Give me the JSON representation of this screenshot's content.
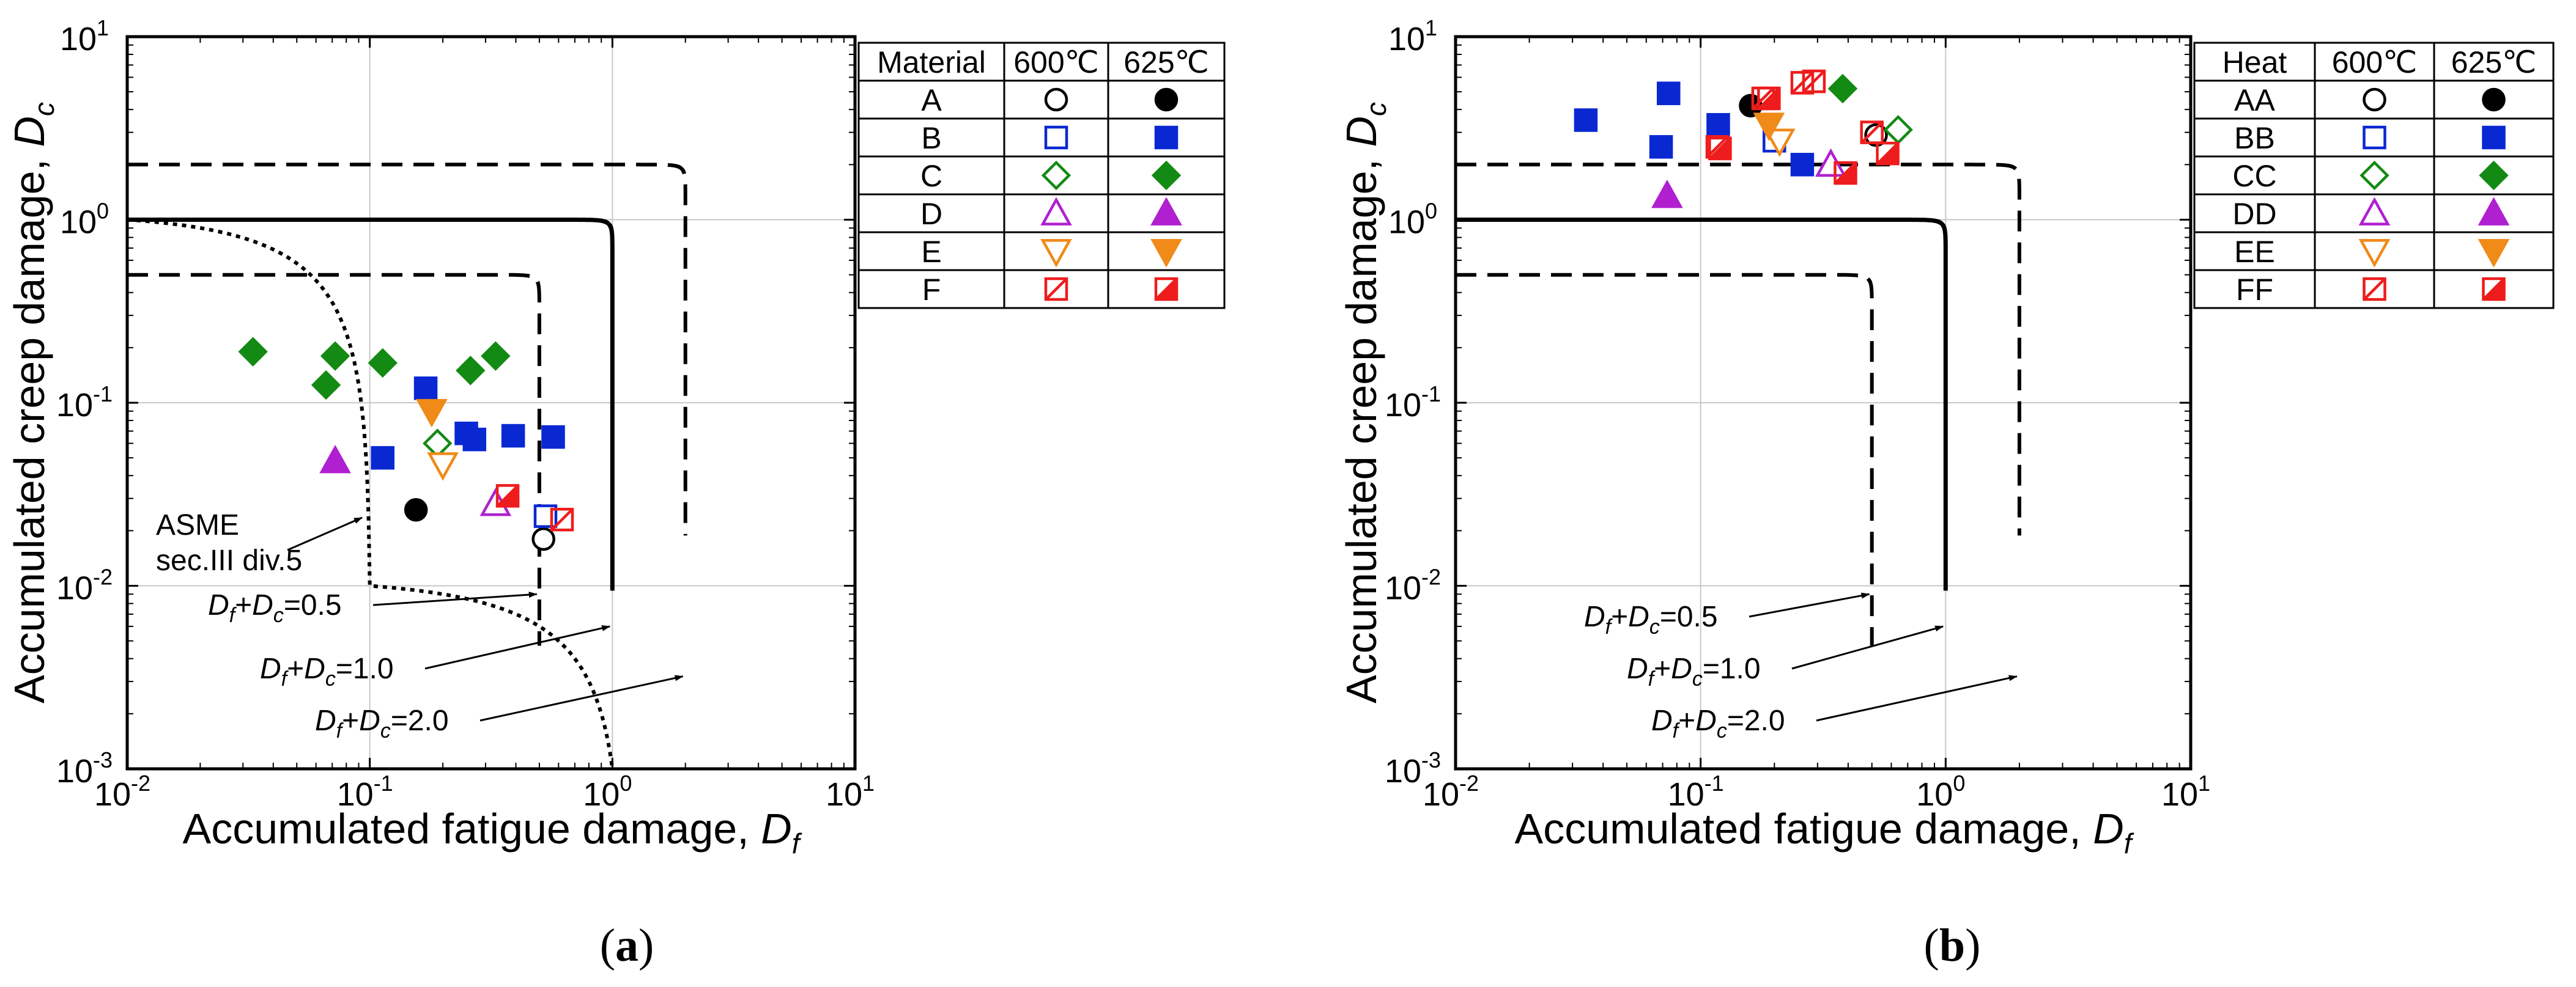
{
  "chart_data": [
    {
      "type": "scatter",
      "panel_label": "(a)",
      "xlabel": "Accumulated fatigue damage, D_f",
      "xlabel_text": "Accumulated fatigue damage, ",
      "ylabel": "Accumulated creep damage, D_c",
      "ylabel_text": "Accumulated creep damage, ",
      "xscale": "log",
      "yscale": "log",
      "xlim": [
        0.01,
        10
      ],
      "ylim": [
        0.001,
        10
      ],
      "xticks": [
        {
          "base": "10",
          "exp": "-2"
        },
        {
          "base": "10",
          "exp": "-1"
        },
        {
          "base": "10",
          "exp": "0"
        },
        {
          "base": "10",
          "exp": "1"
        }
      ],
      "yticks": [
        {
          "base": "10",
          "exp": "-3"
        },
        {
          "base": "10",
          "exp": "-2"
        },
        {
          "base": "10",
          "exp": "-1"
        },
        {
          "base": "10",
          "exp": "0"
        },
        {
          "base": "10",
          "exp": "1"
        }
      ],
      "grid": true,
      "envelopes": [
        {
          "name": "Df+Dc=0.5",
          "style": "dashed",
          "sum": 0.5
        },
        {
          "name": "Df+Dc=1.0",
          "style": "solid",
          "sum": 1.0
        },
        {
          "name": "Df+Dc=2.0",
          "style": "dashed",
          "sum": 2.0
        },
        {
          "name": "ASME sec.III div.5",
          "style": "dotted",
          "bilinear": [
            [
              0.01,
              1
            ],
            [
              0.1,
              0.01
            ],
            [
              1,
              0.001
            ]
          ]
        }
      ],
      "annotations": [
        {
          "text_lines": [
            "ASME",
            "sec.III div.5"
          ],
          "points_to": "ASME sec.III div.5"
        },
        {
          "text": "Df+Dc=0.5",
          "points_to": "Df+Dc=0.5"
        },
        {
          "text": "Df+Dc=1.0",
          "points_to": "Df+Dc=1.0"
        },
        {
          "text": "Df+Dc=2.0",
          "points_to": "Df+Dc=2.0"
        }
      ],
      "legend": {
        "placement": "right-outside",
        "headers": [
          "Material",
          "600℃",
          "625℃"
        ],
        "rows": [
          {
            "name": "A",
            "marker": "circle",
            "color": "#000000"
          },
          {
            "name": "B",
            "marker": "square",
            "color": "#0a28d2"
          },
          {
            "name": "C",
            "marker": "diamond",
            "color": "#138a13"
          },
          {
            "name": "D",
            "marker": "triangle-up",
            "color": "#b020d0"
          },
          {
            "name": "E",
            "marker": "triangle-down",
            "color": "#f08a18"
          },
          {
            "name": "F",
            "marker": "half-square",
            "color": "#ee1c1c"
          }
        ]
      },
      "series": [
        {
          "name": "A",
          "temperature": "600℃",
          "marker": "circle",
          "filled": false,
          "color": "#000000",
          "points": [
            [
              0.52,
              0.018
            ]
          ]
        },
        {
          "name": "A",
          "temperature": "625℃",
          "marker": "circle",
          "filled": true,
          "color": "#000000",
          "points": [
            [
              0.155,
              0.026
            ]
          ]
        },
        {
          "name": "B",
          "temperature": "600℃",
          "marker": "square",
          "filled": false,
          "color": "#0a28d2",
          "points": [
            [
              0.53,
              0.024
            ]
          ]
        },
        {
          "name": "B",
          "temperature": "625℃",
          "marker": "square",
          "filled": true,
          "color": "#0a28d2",
          "points": [
            [
              0.113,
              0.05
            ],
            [
              0.17,
              0.12
            ],
            [
              0.25,
              0.068
            ],
            [
              0.27,
              0.063
            ],
            [
              0.39,
              0.066
            ],
            [
              0.57,
              0.065
            ]
          ]
        },
        {
          "name": "C",
          "temperature": "600℃",
          "marker": "diamond",
          "filled": false,
          "color": "#138a13",
          "points": [
            [
              0.19,
              0.06
            ]
          ]
        },
        {
          "name": "C",
          "temperature": "625℃",
          "marker": "diamond",
          "filled": true,
          "color": "#138a13",
          "points": [
            [
              0.033,
              0.19
            ],
            [
              0.066,
              0.125
            ],
            [
              0.072,
              0.18
            ],
            [
              0.113,
              0.165
            ],
            [
              0.26,
              0.15
            ],
            [
              0.33,
              0.18
            ]
          ]
        },
        {
          "name": "D",
          "temperature": "600℃",
          "marker": "triangle-up",
          "filled": false,
          "color": "#b020d0",
          "points": [
            [
              0.33,
              0.028
            ]
          ]
        },
        {
          "name": "D",
          "temperature": "625℃",
          "marker": "triangle-up",
          "filled": true,
          "color": "#b020d0",
          "points": [
            [
              0.072,
              0.048
            ]
          ]
        },
        {
          "name": "E",
          "temperature": "600℃",
          "marker": "triangle-down",
          "filled": false,
          "color": "#f08a18",
          "points": [
            [
              0.2,
              0.046
            ]
          ]
        },
        {
          "name": "E",
          "temperature": "625℃",
          "marker": "triangle-down",
          "filled": true,
          "color": "#f08a18",
          "points": [
            [
              0.18,
              0.09
            ]
          ]
        },
        {
          "name": "F",
          "temperature": "600℃",
          "marker": "half-square",
          "filled": false,
          "color": "#ee1c1c",
          "points": [
            [
              0.62,
              0.023
            ]
          ]
        },
        {
          "name": "F",
          "temperature": "625℃",
          "marker": "half-square",
          "filled": true,
          "color": "#ee1c1c",
          "points": [
            [
              0.37,
              0.031
            ]
          ]
        }
      ]
    },
    {
      "type": "scatter",
      "panel_label": "(b)",
      "xlabel": "Accumulated fatigue damage, D_f",
      "xlabel_text": "Accumulated fatigue damage, ",
      "ylabel": "Accumulated creep damage, D_c",
      "ylabel_text": "Accumulated creep damage, ",
      "xscale": "log",
      "yscale": "log",
      "xlim": [
        0.01,
        10
      ],
      "ylim": [
        0.001,
        10
      ],
      "xticks": [
        {
          "base": "10",
          "exp": "-2"
        },
        {
          "base": "10",
          "exp": "-1"
        },
        {
          "base": "10",
          "exp": "0"
        },
        {
          "base": "10",
          "exp": "1"
        }
      ],
      "yticks": [
        {
          "base": "10",
          "exp": "-3"
        },
        {
          "base": "10",
          "exp": "-2"
        },
        {
          "base": "10",
          "exp": "-1"
        },
        {
          "base": "10",
          "exp": "0"
        },
        {
          "base": "10",
          "exp": "1"
        }
      ],
      "grid": true,
      "envelopes": [
        {
          "name": "Df+Dc=0.5",
          "style": "dashed",
          "sum": 0.5
        },
        {
          "name": "Df+Dc=1.0",
          "style": "solid",
          "sum": 1.0
        },
        {
          "name": "Df+Dc=2.0",
          "style": "dashed",
          "sum": 2.0
        }
      ],
      "annotations": [
        {
          "text": "Df+Dc=0.5",
          "points_to": "Df+Dc=0.5"
        },
        {
          "text": "Df+Dc=1.0",
          "points_to": "Df+Dc=1.0"
        },
        {
          "text": "Df+Dc=2.0",
          "points_to": "Df+Dc=2.0"
        }
      ],
      "legend": {
        "placement": "right-outside",
        "headers": [
          "Heat",
          "600℃",
          "625℃"
        ],
        "rows": [
          {
            "name": "AA",
            "marker": "circle",
            "color": "#000000"
          },
          {
            "name": "BB",
            "marker": "square",
            "color": "#0a28d2"
          },
          {
            "name": "CC",
            "marker": "diamond",
            "color": "#138a13"
          },
          {
            "name": "DD",
            "marker": "triangle-up",
            "color": "#b020d0"
          },
          {
            "name": "EE",
            "marker": "triangle-down",
            "color": "#f08a18"
          },
          {
            "name": "FF",
            "marker": "half-square",
            "color": "#ee1c1c"
          }
        ]
      },
      "series": [
        {
          "name": "AA",
          "temperature": "600℃",
          "marker": "circle",
          "filled": false,
          "color": "#000000",
          "points": [
            [
              0.52,
              2.9
            ]
          ]
        },
        {
          "name": "AA",
          "temperature": "625℃",
          "marker": "circle",
          "filled": true,
          "color": "#000000",
          "points": [
            [
              0.16,
              4.2
            ]
          ]
        },
        {
          "name": "BB",
          "temperature": "600℃",
          "marker": "square",
          "filled": false,
          "color": "#0a28d2",
          "points": [
            [
              0.2,
              2.7
            ]
          ]
        },
        {
          "name": "BB",
          "temperature": "625℃",
          "marker": "square",
          "filled": true,
          "color": "#0a28d2",
          "points": [
            [
              0.034,
              3.5
            ],
            [
              0.074,
              4.9
            ],
            [
              0.069,
              2.5
            ],
            [
              0.118,
              3.3
            ],
            [
              0.26,
              2.0
            ]
          ]
        },
        {
          "name": "CC",
          "temperature": "600℃",
          "marker": "diamond",
          "filled": false,
          "color": "#138a13",
          "points": [
            [
              0.64,
              3.1
            ]
          ]
        },
        {
          "name": "CC",
          "temperature": "625℃",
          "marker": "diamond",
          "filled": true,
          "color": "#138a13",
          "points": [
            [
              0.38,
              5.2
            ]
          ]
        },
        {
          "name": "DD",
          "temperature": "600℃",
          "marker": "triangle-up",
          "filled": false,
          "color": "#b020d0",
          "points": [
            [
              0.34,
              2.0
            ]
          ]
        },
        {
          "name": "DD",
          "temperature": "625℃",
          "marker": "triangle-up",
          "filled": true,
          "color": "#b020d0",
          "points": [
            [
              0.073,
              1.35
            ]
          ]
        },
        {
          "name": "EE",
          "temperature": "600℃",
          "marker": "triangle-down",
          "filled": false,
          "color": "#f08a18",
          "points": [
            [
              0.21,
              2.7
            ]
          ]
        },
        {
          "name": "EE",
          "temperature": "625℃",
          "marker": "triangle-down",
          "filled": true,
          "color": "#f08a18",
          "points": [
            [
              0.19,
              3.3
            ]
          ]
        },
        {
          "name": "FF",
          "temperature": "600℃",
          "marker": "half-square",
          "filled": false,
          "color": "#ee1c1c",
          "points": [
            [
              0.117,
              2.5
            ],
            [
              0.18,
              4.6
            ],
            [
              0.26,
              5.6
            ],
            [
              0.29,
              5.7
            ],
            [
              0.5,
              3.0
            ]
          ]
        },
        {
          "name": "FF",
          "temperature": "625℃",
          "marker": "half-square",
          "filled": true,
          "color": "#ee1c1c",
          "points": [
            [
              0.12,
              2.45
            ],
            [
              0.19,
              4.6
            ],
            [
              0.39,
              1.8
            ],
            [
              0.58,
              2.3
            ]
          ]
        }
      ]
    }
  ]
}
